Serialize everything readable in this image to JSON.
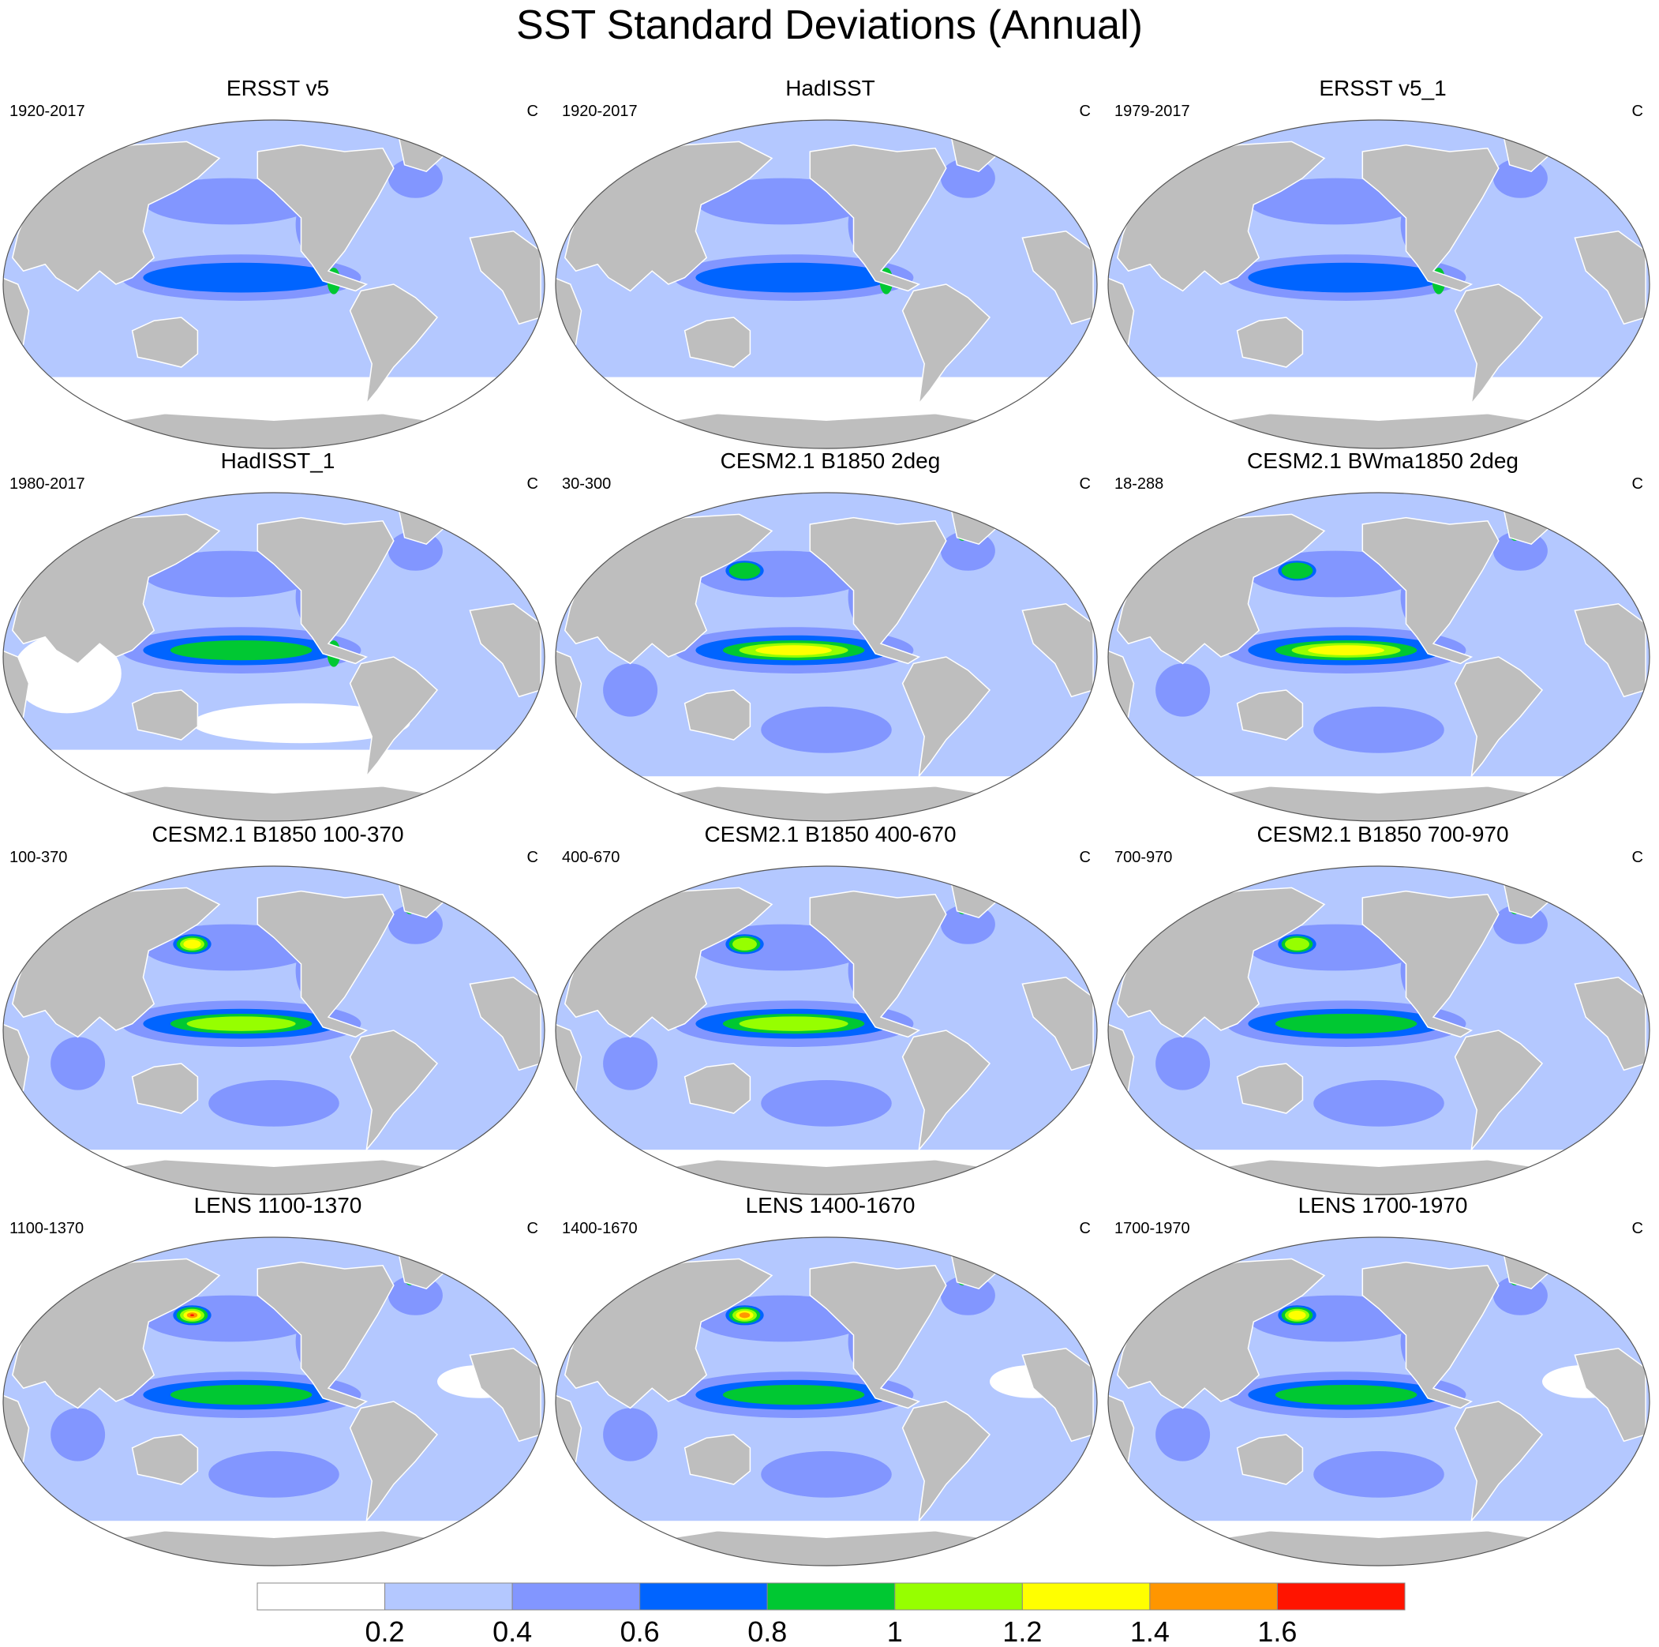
{
  "figure_title": "SST Standard Deviations (Annual)",
  "panels": [
    {
      "title": "ERSST v5",
      "left_label": "1920-2017",
      "right_label": "C",
      "variant": "obs",
      "enso_level": 3,
      "wp_level": 0
    },
    {
      "title": "HadISST",
      "left_label": "1920-2017",
      "right_label": "C",
      "variant": "obs",
      "enso_level": 3,
      "wp_level": 0
    },
    {
      "title": "ERSST v5_1",
      "left_label": "1979-2017",
      "right_label": "C",
      "variant": "obs",
      "enso_level": 3,
      "wp_level": 0
    },
    {
      "title": "HadISST_1",
      "left_label": "1980-2017",
      "right_label": "C",
      "variant": "obs2",
      "enso_level": 4,
      "wp_level": 0
    },
    {
      "title": "CESM2.1 B1850 2deg",
      "left_label": "30-300",
      "right_label": "C",
      "variant": "model_strong",
      "enso_level": 6,
      "wp_level": 4
    },
    {
      "title": "CESM2.1 BWma1850 2deg",
      "left_label": "18-288",
      "right_label": "C",
      "variant": "model_strong",
      "enso_level": 6,
      "wp_level": 4
    },
    {
      "title": "CESM2.1 B1850 100-370",
      "left_label": "100-370",
      "right_label": "C",
      "variant": "model",
      "enso_level": 5,
      "wp_level": 6
    },
    {
      "title": "CESM2.1 B1850 400-670",
      "left_label": "400-670",
      "right_label": "C",
      "variant": "model",
      "enso_level": 5,
      "wp_level": 5
    },
    {
      "title": "CESM2.1 B1850 700-970",
      "left_label": "700-970",
      "right_label": "C",
      "variant": "model",
      "enso_level": 4,
      "wp_level": 5
    },
    {
      "title": "LENS 1100-1370",
      "left_label": "1100-1370",
      "right_label": "C",
      "variant": "lens",
      "enso_level": 4,
      "wp_level": 8
    },
    {
      "title": "LENS 1400-1670",
      "left_label": "1400-1670",
      "right_label": "C",
      "variant": "lens",
      "enso_level": 4,
      "wp_level": 7
    },
    {
      "title": "LENS 1700-1970",
      "left_label": "1700-1970",
      "right_label": "C",
      "variant": "lens",
      "enso_level": 4,
      "wp_level": 6
    }
  ],
  "colorbar": {
    "colors": [
      "#ffffff",
      "#b4c8ff",
      "#8296ff",
      "#0064ff",
      "#00c832",
      "#96ff00",
      "#ffff00",
      "#ff9600",
      "#ff1400"
    ],
    "tick_labels": [
      "0.2",
      "0.4",
      "0.6",
      "0.8",
      "1",
      "1.2",
      "1.4",
      "1.6"
    ]
  },
  "land_color": "#bebebe"
}
